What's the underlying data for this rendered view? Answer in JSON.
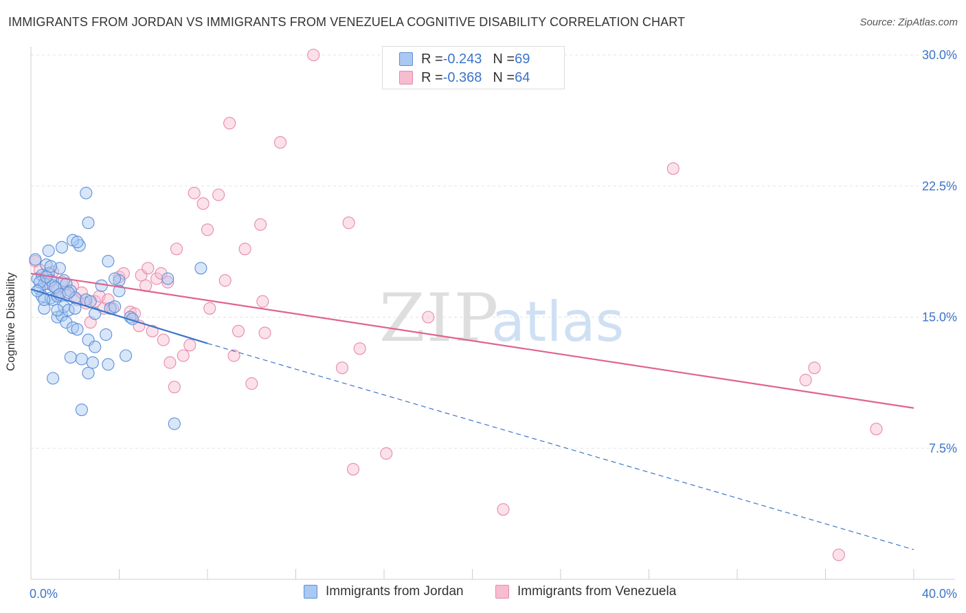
{
  "title": "IMMIGRANTS FROM JORDAN VS IMMIGRANTS FROM VENEZUELA COGNITIVE DISABILITY CORRELATION CHART",
  "source": "Source: ZipAtlas.com",
  "watermark": {
    "zip": "ZIP",
    "atlas": "atlas"
  },
  "legend": {
    "jordan": {
      "r_label": "R = ",
      "r_value": "-0.243",
      "n_label": "N = ",
      "n_value": "69"
    },
    "venezuela": {
      "r_label": "R = ",
      "r_value": "-0.368",
      "n_label": "N = ",
      "n_value": "64"
    }
  },
  "bottom_legend": {
    "jordan": "Immigrants from Jordan",
    "venezuela": "Immigrants from Venezuela"
  },
  "colors": {
    "jordan_fill": "#a9c8f2",
    "jordan_stroke": "#5b8fd6",
    "jordan_line": "#3b74c9",
    "venezuela_fill": "#f7bcd0",
    "venezuela_stroke": "#e889a8",
    "venezuela_line": "#e0628e",
    "axis_label": "#3b74c9",
    "grid": "#e3e3e3"
  },
  "chart_data": {
    "type": "scatter",
    "title": "IMMIGRANTS FROM JORDAN VS IMMIGRANTS FROM VENEZUELA COGNITIVE DISABILITY CORRELATION CHART",
    "xlabel": "",
    "ylabel": "Cognitive Disability",
    "xlim": [
      0,
      40
    ],
    "ylim": [
      0,
      31.5
    ],
    "x_tick_labels": [
      "0.0%",
      "40.0%"
    ],
    "y_ticks": [
      7.5,
      15.0,
      22.5,
      30.0
    ],
    "y_tick_labels": [
      "7.5%",
      "15.0%",
      "22.5%",
      "30.0%"
    ],
    "grid": true,
    "series": [
      {
        "name": "Immigrants from Jordan",
        "points": [
          [
            0.2,
            18.3
          ],
          [
            0.3,
            17.2
          ],
          [
            0.4,
            16.6
          ],
          [
            0.5,
            16.2
          ],
          [
            0.5,
            17.4
          ],
          [
            0.6,
            16.9
          ],
          [
            0.6,
            15.5
          ],
          [
            0.7,
            18.0
          ],
          [
            0.8,
            17.5
          ],
          [
            0.9,
            16.1
          ],
          [
            0.9,
            17.1
          ],
          [
            1.0,
            16.8
          ],
          [
            1.0,
            16.0
          ],
          [
            0.8,
            18.8
          ],
          [
            1.2,
            16.2
          ],
          [
            1.1,
            16.7
          ],
          [
            1.2,
            15.0
          ],
          [
            1.3,
            16.3
          ],
          [
            1.4,
            15.1
          ],
          [
            1.5,
            17.1
          ],
          [
            1.5,
            15.6
          ],
          [
            1.6,
            16.9
          ],
          [
            1.6,
            14.7
          ],
          [
            1.7,
            15.4
          ],
          [
            1.8,
            12.7
          ],
          [
            1.8,
            16.5
          ],
          [
            1.9,
            14.4
          ],
          [
            2.0,
            16.1
          ],
          [
            2.0,
            15.5
          ],
          [
            2.1,
            14.3
          ],
          [
            2.2,
            19.1
          ],
          [
            2.3,
            12.6
          ],
          [
            2.3,
            9.7
          ],
          [
            2.5,
            16.0
          ],
          [
            2.6,
            13.7
          ],
          [
            2.6,
            11.8
          ],
          [
            2.7,
            15.9
          ],
          [
            2.9,
            15.2
          ],
          [
            2.6,
            20.4
          ],
          [
            2.8,
            12.4
          ],
          [
            2.9,
            13.3
          ],
          [
            3.2,
            16.8
          ],
          [
            3.4,
            14.0
          ],
          [
            3.5,
            12.3
          ],
          [
            3.5,
            18.2
          ],
          [
            3.6,
            15.5
          ],
          [
            3.8,
            15.6
          ],
          [
            4.0,
            17.1
          ],
          [
            4.0,
            16.5
          ],
          [
            4.3,
            12.8
          ],
          [
            4.5,
            15.0
          ],
          [
            4.6,
            14.9
          ],
          [
            1.9,
            19.4
          ],
          [
            1.4,
            19.0
          ],
          [
            2.1,
            19.3
          ],
          [
            2.5,
            22.1
          ],
          [
            1.0,
            11.5
          ],
          [
            3.8,
            17.2
          ],
          [
            0.4,
            17.0
          ],
          [
            0.6,
            16.0
          ],
          [
            1.3,
            17.8
          ],
          [
            1.7,
            16.4
          ],
          [
            6.2,
            17.2
          ],
          [
            6.5,
            8.9
          ],
          [
            7.7,
            17.8
          ],
          [
            0.3,
            16.5
          ],
          [
            0.7,
            17.3
          ],
          [
            1.2,
            15.4
          ],
          [
            0.9,
            17.9
          ]
        ]
      },
      {
        "name": "Immigrants from Venezuela",
        "points": [
          [
            0.2,
            18.2
          ],
          [
            0.4,
            17.7
          ],
          [
            0.6,
            17.3
          ],
          [
            0.8,
            16.9
          ],
          [
            1.0,
            17.6
          ],
          [
            1.2,
            16.6
          ],
          [
            1.4,
            17.0
          ],
          [
            1.6,
            16.3
          ],
          [
            1.9,
            16.8
          ],
          [
            2.1,
            16.0
          ],
          [
            2.3,
            16.4
          ],
          [
            2.5,
            15.8
          ],
          [
            2.7,
            14.7
          ],
          [
            2.9,
            15.9
          ],
          [
            3.1,
            16.2
          ],
          [
            3.3,
            15.5
          ],
          [
            3.5,
            16.0
          ],
          [
            3.7,
            15.5
          ],
          [
            4.0,
            17.3
          ],
          [
            4.2,
            17.5
          ],
          [
            4.5,
            15.3
          ],
          [
            4.7,
            15.2
          ],
          [
            4.9,
            14.5
          ],
          [
            5.0,
            17.4
          ],
          [
            5.2,
            16.8
          ],
          [
            5.3,
            17.8
          ],
          [
            5.5,
            14.2
          ],
          [
            5.7,
            17.2
          ],
          [
            5.9,
            17.5
          ],
          [
            6.0,
            13.7
          ],
          [
            6.2,
            17.0
          ],
          [
            6.3,
            12.4
          ],
          [
            6.5,
            11.0
          ],
          [
            6.6,
            18.9
          ],
          [
            6.9,
            12.8
          ],
          [
            7.2,
            13.4
          ],
          [
            7.4,
            22.1
          ],
          [
            7.8,
            21.5
          ],
          [
            8.0,
            20.0
          ],
          [
            8.1,
            15.5
          ],
          [
            8.5,
            22.0
          ],
          [
            8.8,
            17.1
          ],
          [
            9.0,
            26.1
          ],
          [
            9.2,
            12.8
          ],
          [
            9.4,
            14.2
          ],
          [
            9.7,
            18.9
          ],
          [
            10.0,
            11.2
          ],
          [
            10.4,
            20.3
          ],
          [
            10.5,
            15.9
          ],
          [
            10.6,
            14.1
          ],
          [
            11.3,
            25.0
          ],
          [
            12.8,
            30.0
          ],
          [
            14.1,
            12.1
          ],
          [
            14.4,
            20.4
          ],
          [
            14.6,
            6.3
          ],
          [
            14.9,
            13.2
          ],
          [
            16.1,
            7.2
          ],
          [
            18.0,
            15.0
          ],
          [
            21.4,
            4.0
          ],
          [
            29.1,
            23.5
          ],
          [
            35.1,
            11.4
          ],
          [
            35.5,
            12.1
          ],
          [
            38.3,
            8.6
          ],
          [
            36.6,
            1.4
          ]
        ]
      }
    ],
    "trendlines": [
      {
        "series": "Immigrants from Jordan",
        "x": [
          0,
          8
        ],
        "y": [
          16.6,
          13.5
        ],
        "extended_x": [
          8,
          40
        ],
        "extended_y": [
          13.5,
          1.7
        ],
        "style": "solid then dashed"
      },
      {
        "series": "Immigrants from Venezuela",
        "x": [
          0,
          40
        ],
        "y": [
          17.5,
          9.8
        ],
        "style": "solid"
      }
    ]
  }
}
